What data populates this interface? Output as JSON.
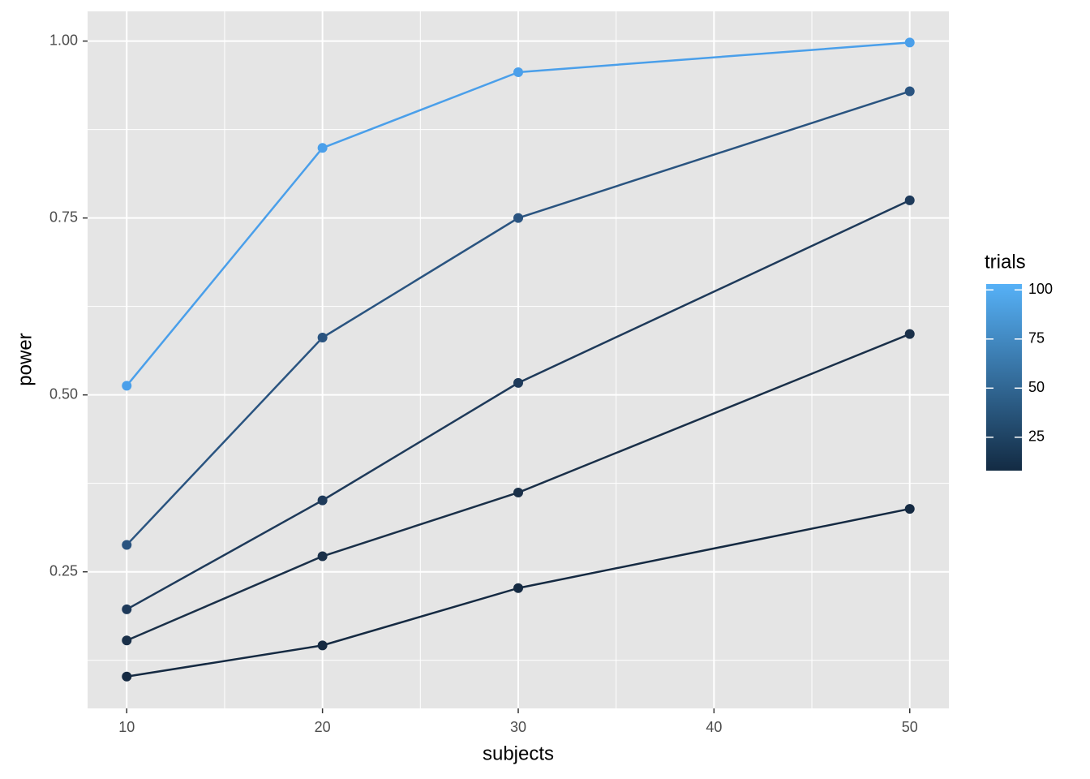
{
  "chart_data": {
    "type": "line",
    "x_label": "subjects",
    "y_label": "power",
    "x": [
      10,
      20,
      30,
      50
    ],
    "series": [
      {
        "color": "#4A9FEA",
        "values": [
          0.513,
          0.849,
          0.956,
          0.998
        ]
      },
      {
        "color": "#2A5480",
        "values": [
          0.288,
          0.581,
          0.75,
          0.929
        ]
      },
      {
        "color": "#1E3A5A",
        "values": [
          0.197,
          0.351,
          0.517,
          0.775
        ]
      },
      {
        "color": "#1A3049",
        "values": [
          0.153,
          0.272,
          0.362,
          0.586
        ]
      },
      {
        "color": "#152A42",
        "values": [
          0.102,
          0.146,
          0.227,
          0.339
        ]
      }
    ],
    "xlim": [
      8,
      52
    ],
    "xticks": [
      10,
      20,
      30,
      40,
      50
    ],
    "ylim": [
      0.057,
      1.042
    ],
    "yticks": [
      {
        "value": 0.25,
        "label": "0.25"
      },
      {
        "value": 0.5,
        "label": "0.50"
      },
      {
        "value": 0.75,
        "label": "0.75"
      },
      {
        "value": 1,
        "label": "1.00"
      }
    ],
    "grid": true,
    "minor_grid": true,
    "color_scale": {
      "title": "trials",
      "lim": [
        8,
        103
      ],
      "ticks": [
        25,
        50,
        75,
        100
      ],
      "low": "#132B43",
      "high": "#56B1F7"
    }
  }
}
